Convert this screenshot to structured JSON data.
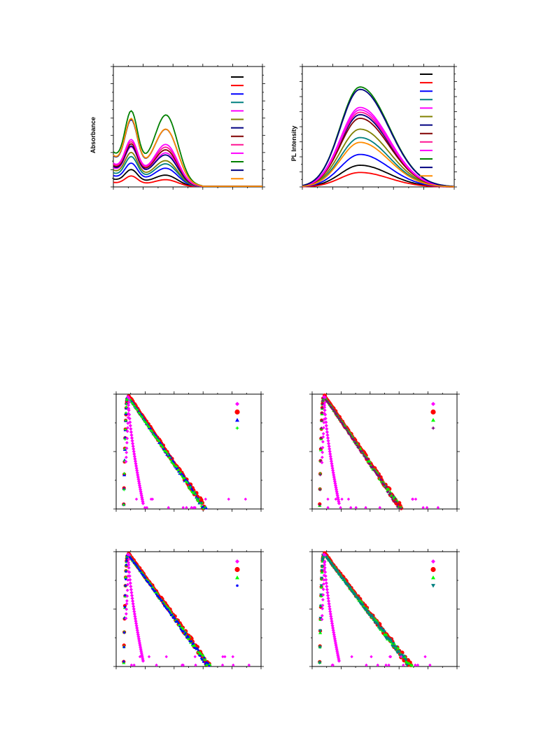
{
  "legend_colors": [
    "#000000",
    "#ff0000",
    "#0000ff",
    "#008080",
    "#ff00ff",
    "#808000",
    "#000080",
    "#800000",
    "#ff1493",
    "#ff00ff",
    "#008000",
    "#000080",
    "#ff8c00"
  ],
  "decay_colors": {
    "d1": [
      "#ff00ff",
      "#ff0000",
      "#0000ff",
      "#00ff00"
    ],
    "d2": [
      "#ff00ff",
      "#ff0000",
      "#00ff00",
      "#800080"
    ],
    "d3": [
      "#ff00ff",
      "#ff0000",
      "#00ff00",
      "#0000ff"
    ],
    "d4": [
      "#ff00ff",
      "#ff0000",
      "#00ff00",
      "#008080"
    ]
  },
  "decay_markers": {
    "d1": [
      "diamond",
      "circle",
      "triangle",
      "star"
    ],
    "d2": [
      "diamond",
      "circle",
      "triangle",
      "star"
    ],
    "d3": [
      "diamond",
      "circle",
      "triangle",
      "dot"
    ],
    "d4": [
      "diamond",
      "circle",
      "triangle",
      "triangle-down"
    ]
  },
  "chart_data": [
    {
      "type": "line",
      "ylabel": "Absorbance",
      "xlabel": "",
      "xlim": [
        0,
        100
      ],
      "ylim": [
        0,
        100
      ],
      "series_colors": [
        "#000000",
        "#ff0000",
        "#0000ff",
        "#008080",
        "#ff00ff",
        "#808000",
        "#000080",
        "#800000",
        "#ff1493",
        "#ff00ff",
        "#008000",
        "#000080",
        "#ff8c00"
      ],
      "peak1_heights": [
        16,
        10,
        22,
        28,
        37,
        32,
        38,
        40,
        42,
        44,
        70,
        62,
        63
      ],
      "peak2_heights": [
        8,
        5,
        13,
        16,
        24,
        18,
        22,
        26,
        28,
        30,
        52,
        41,
        41
      ],
      "base_heights": [
        14,
        8,
        20,
        25,
        34,
        30,
        36,
        38,
        40,
        42,
        62,
        55,
        56
      ]
    },
    {
      "type": "line",
      "ylabel": "PL Intensity",
      "xlabel": "",
      "xlim": [
        0,
        100
      ],
      "ylim": [
        0,
        100
      ],
      "series_colors": [
        "#000000",
        "#ff0000",
        "#0000ff",
        "#008080",
        "#ff00ff",
        "#808000",
        "#000080",
        "#800000",
        "#ff1493",
        "#ff00ff",
        "#008000",
        "#000080",
        "#ff8c00"
      ],
      "peak_heights": [
        18,
        12,
        27,
        41,
        66,
        48,
        60,
        57,
        62,
        64,
        83,
        81,
        37
      ]
    },
    {
      "type": "scatter",
      "ylabel": "",
      "xlabel": "",
      "scale": "log",
      "decay_rate": 1.9
    },
    {
      "type": "scatter",
      "ylabel": "",
      "xlabel": "",
      "scale": "log",
      "decay_rate": 1.9
    },
    {
      "type": "scatter",
      "ylabel": "",
      "xlabel": "",
      "scale": "log",
      "decay_rate": 1.8
    },
    {
      "type": "scatter",
      "ylabel": "",
      "xlabel": "",
      "scale": "log",
      "decay_rate": 1.7
    }
  ]
}
